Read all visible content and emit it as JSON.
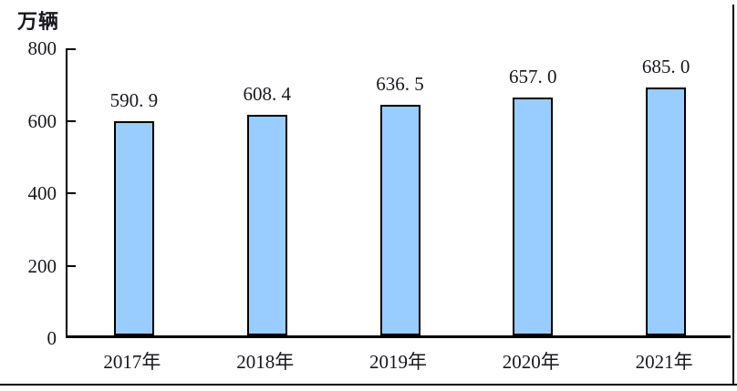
{
  "figure": {
    "unit_label": "万辆"
  },
  "colors": {
    "bar_fill": "#99CCFF",
    "bar_border": "#000000",
    "axis": "#000000",
    "text": "#17171f",
    "background": "#ffffff"
  },
  "chart_data": {
    "type": "bar",
    "categories": [
      "2017年",
      "2018年",
      "2019年",
      "2020年",
      "2021年"
    ],
    "values": [
      590.9,
      608.4,
      636.5,
      657.0,
      685.0
    ],
    "value_labels": [
      "590. 9",
      "608. 4",
      "636. 5",
      "657. 0",
      "685. 0"
    ],
    "title": "",
    "xlabel": "",
    "ylabel": "万辆",
    "ylim": [
      0,
      800
    ],
    "yticks": [
      0,
      200,
      400,
      600,
      800
    ],
    "grid": false,
    "legend": "none",
    "bar_outline": true
  }
}
